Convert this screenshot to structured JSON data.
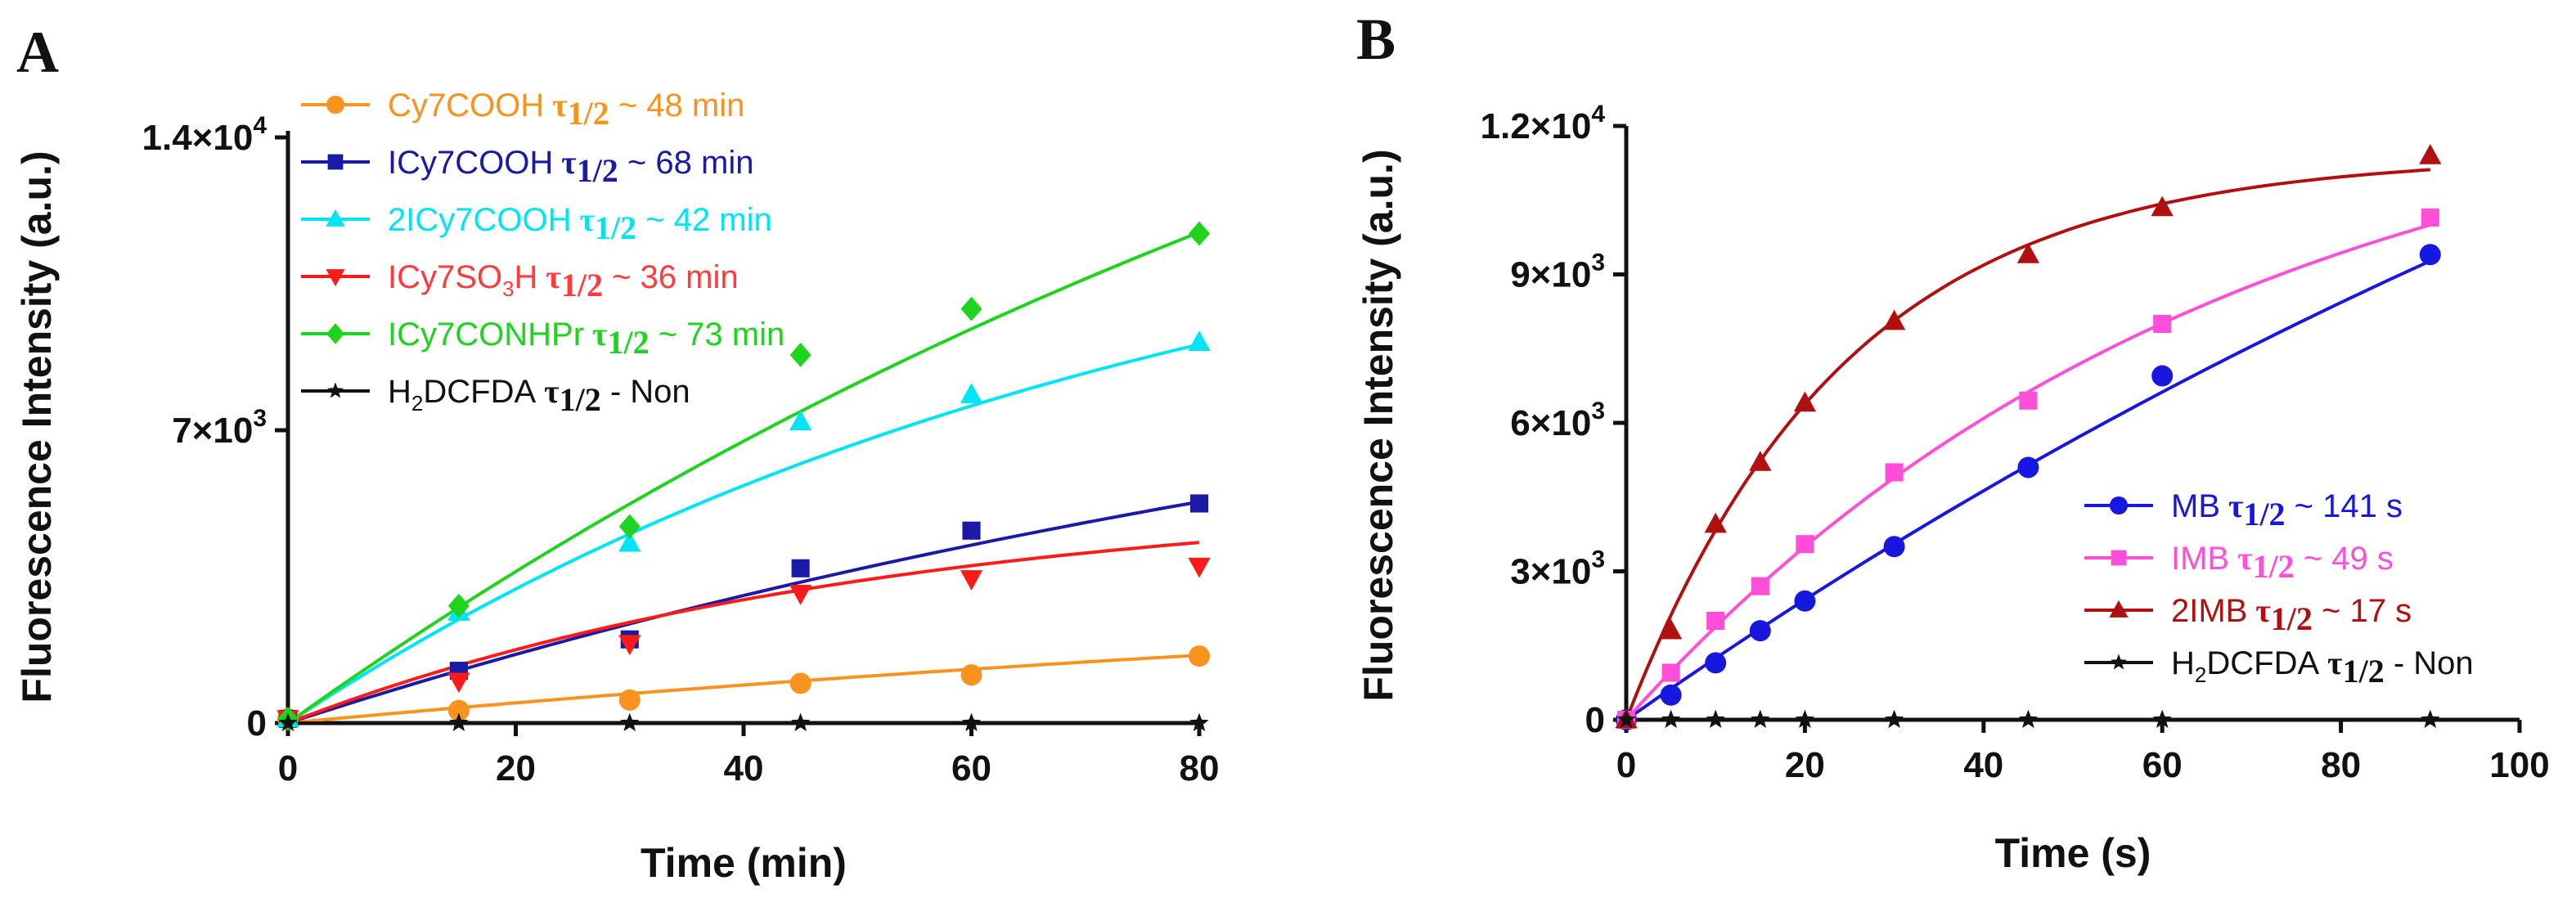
{
  "chart_data": [
    {
      "type": "line",
      "panel": "A",
      "title": "",
      "xlabel": "Time (min)",
      "ylabel": "Fluorescence Intensity (a.u.)",
      "xlim": [
        0,
        80
      ],
      "ylim": [
        0,
        14000
      ],
      "xticks": [
        0,
        20,
        40,
        60,
        80
      ],
      "xtick_labels": [
        "0",
        "20",
        "40",
        "60",
        "80"
      ],
      "yticks": [
        0,
        7000,
        14000
      ],
      "ytick_labels": [
        {
          "mantissa": "0",
          "exp": ""
        },
        {
          "mantissa": "7×10",
          "exp": "3"
        },
        {
          "mantissa": "1.4×10",
          "exp": "4"
        }
      ],
      "legend_position": "top-left",
      "series": [
        {
          "name": "Cy7COOH",
          "sub": "",
          "name_tail": "",
          "tau_suffix": " ~ 48 min",
          "color": "#f7931e",
          "marker": "circle",
          "label_color": "#f7931e",
          "x": [
            0,
            15,
            30,
            45,
            60,
            80
          ],
          "y": [
            100,
            300,
            550,
            950,
            1150,
            1600
          ],
          "fit": {
            "plateau": 4200,
            "k": 0.0061
          }
        },
        {
          "name": "ICy7COOH",
          "sub": "",
          "name_tail": "",
          "tau_suffix": " ~ 68 min",
          "color": "#1a1aa6",
          "marker": "square",
          "label_color": "#1a1aa6",
          "x": [
            0,
            15,
            30,
            45,
            60,
            80
          ],
          "y": [
            100,
            1250,
            2000,
            3700,
            4600,
            5250
          ],
          "fit": {
            "plateau": 11500,
            "k": 0.0077
          }
        },
        {
          "name": "2ICy7COOH",
          "sub": "",
          "name_tail": "",
          "tau_suffix": " ~ 42 min",
          "color": "#00e5f5",
          "marker": "triangle-up",
          "label_color": "#00e5f5",
          "x": [
            0,
            15,
            30,
            45,
            60,
            80
          ],
          "y": [
            100,
            2650,
            4300,
            7200,
            7850,
            9100
          ],
          "fit": {
            "plateau": 14000,
            "k": 0.013
          }
        },
        {
          "name": "ICy7SO",
          "sub": "3",
          "name_tail": "H",
          "tau_suffix": " ~ 36 min",
          "color": "#ff1a1a",
          "marker": "triangle-down",
          "label_color": "#ff3b3b",
          "x": [
            0,
            15,
            30,
            45,
            60,
            80
          ],
          "y": [
            100,
            1000,
            1900,
            3100,
            3450,
            3750
          ],
          "fit": {
            "plateau": 5500,
            "k": 0.0192
          }
        },
        {
          "name": "ICy7CONHPr",
          "sub": "",
          "name_tail": "",
          "tau_suffix": " ~ 73 min",
          "color": "#1fd41f",
          "marker": "diamond",
          "label_color": "#1fd41f",
          "x": [
            0,
            15,
            30,
            45,
            60,
            80
          ],
          "y": [
            100,
            2800,
            4700,
            8800,
            9900,
            11700
          ],
          "fit": {
            "plateau": 26000,
            "k": 0.0075
          }
        },
        {
          "name": "H",
          "sub": "2",
          "name_tail": "DCFDA",
          "tau_suffix": " - Non",
          "color": "#111111",
          "marker": "star",
          "label_color": "#111111",
          "x": [
            0,
            15,
            30,
            45,
            60,
            80
          ],
          "y": [
            0,
            0,
            0,
            0,
            0,
            0
          ],
          "fit": {
            "plateau": 0,
            "k": 0
          }
        }
      ]
    },
    {
      "type": "line",
      "panel": "B",
      "title": "",
      "xlabel": "Time (s)",
      "ylabel": "Fluorescence Intensity (a.u.)",
      "xlim": [
        0,
        100
      ],
      "ylim": [
        0,
        12000
      ],
      "xticks": [
        0,
        20,
        40,
        60,
        80,
        100
      ],
      "xtick_labels": [
        "0",
        "20",
        "40",
        "60",
        "80",
        "100"
      ],
      "yticks": [
        0,
        3000,
        6000,
        9000,
        12000
      ],
      "ytick_labels": [
        {
          "mantissa": "0",
          "exp": ""
        },
        {
          "mantissa": "3×10",
          "exp": "3"
        },
        {
          "mantissa": "6×10",
          "exp": "3"
        },
        {
          "mantissa": "9×10",
          "exp": "3"
        },
        {
          "mantissa": "1.2×10",
          "exp": "4"
        }
      ],
      "legend_position": "bottom-right",
      "series": [
        {
          "name": "MB",
          "sub": "",
          "name_tail": "",
          "tau_suffix": " ~ 141 s",
          "color": "#1717e0",
          "marker": "circle",
          "label_color": "#1717e0",
          "x": [
            0,
            5,
            10,
            15,
            20,
            30,
            45,
            60,
            90
          ],
          "y": [
            0,
            500,
            1150,
            1800,
            2400,
            3500,
            5100,
            6950,
            9400
          ],
          "fit": {
            "plateau": 26000,
            "k": 0.0049
          }
        },
        {
          "name": "IMB",
          "sub": "",
          "name_tail": "",
          "tau_suffix": " ~ 49 s",
          "color": "#ff4fd8",
          "marker": "square",
          "label_color": "#ff4fd8",
          "x": [
            0,
            5,
            10,
            15,
            20,
            30,
            45,
            60,
            90
          ],
          "y": [
            0,
            950,
            2000,
            2700,
            3550,
            5000,
            6450,
            8000,
            10150
          ],
          "fit": {
            "plateau": 13500,
            "k": 0.015
          }
        },
        {
          "name": "2IMB",
          "sub": "",
          "name_tail": "",
          "tau_suffix": " ~ 17 s",
          "color": "#b01010",
          "marker": "triangle-up",
          "label_color": "#b01010",
          "x": [
            0,
            5,
            10,
            15,
            20,
            30,
            45,
            60,
            90
          ],
          "y": [
            0,
            1800,
            3950,
            5200,
            6400,
            8050,
            9400,
            10350,
            11400
          ],
          "fit": {
            "plateau": 11400,
            "k": 0.041
          }
        },
        {
          "name": "H",
          "sub": "2",
          "name_tail": "DCFDA",
          "tau_suffix": " - Non",
          "color": "#111111",
          "marker": "star",
          "label_color": "#111111",
          "x": [
            0,
            5,
            10,
            15,
            20,
            30,
            45,
            60,
            90
          ],
          "y": [
            0,
            0,
            0,
            0,
            0,
            0,
            0,
            0,
            0
          ],
          "fit": {
            "plateau": 0,
            "k": 0
          }
        }
      ]
    }
  ]
}
